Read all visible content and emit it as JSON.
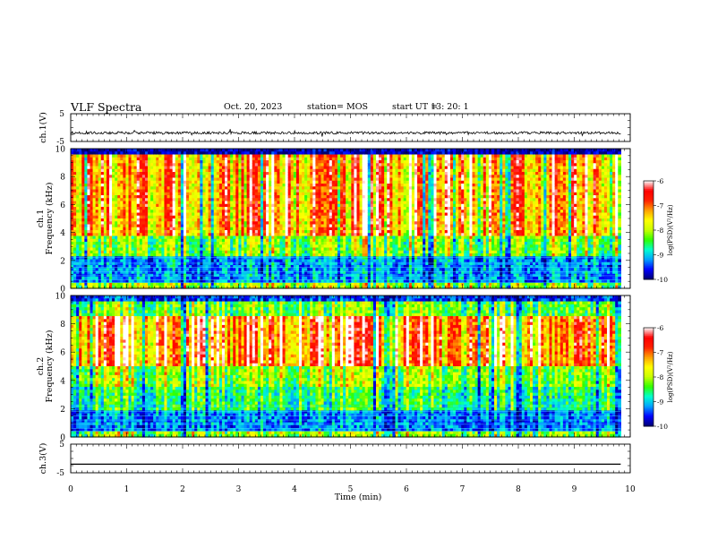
{
  "header": {
    "title": "VLF Spectra",
    "date": "Oct. 20, 2023",
    "station": "station= MOS",
    "start_label": "start  UT =",
    "start_time": "13: 20: 1"
  },
  "chart_data": [
    {
      "type": "line",
      "panel": "ch1-waveform",
      "ylabel": "ch.1(V)",
      "ylim": [
        -5,
        5
      ],
      "yticks": [
        "5",
        "-5"
      ],
      "xlim": [
        0,
        10
      ],
      "series_description": "noisy waveform near -1.9 V",
      "baseline": -1.9
    },
    {
      "type": "heatmap",
      "panel": "ch1-spectrogram",
      "ylabel": "ch.1 Frequency (kHz)",
      "ylim": [
        0,
        10
      ],
      "yticks": [
        "0",
        "2",
        "4",
        "6",
        "8",
        "10"
      ],
      "xlim": [
        0,
        9.83
      ],
      "colorbar": {
        "label": "log(PSD)(V²/Hz)",
        "ticks": [
          "-6",
          "-7",
          "-8",
          "-9",
          "-10"
        ],
        "range": [
          -10,
          -6
        ],
        "colors": [
          "#000070",
          "#0000ff",
          "#00a0ff",
          "#00ffd0",
          "#30ff00",
          "#c8ff00",
          "#ffff00",
          "#ffa000",
          "#ff2000",
          "#ff0000",
          "#ffffff"
        ]
      },
      "dominant_band_khz": [
        4,
        9.5
      ]
    },
    {
      "type": "heatmap",
      "panel": "ch2-spectrogram",
      "ylabel": "ch.2 Frequency (kHz)",
      "ylim": [
        0,
        10
      ],
      "yticks": [
        "0",
        "2",
        "4",
        "6",
        "8",
        "10"
      ],
      "xlim": [
        0,
        9.83
      ],
      "colorbar": {
        "label": "log(PSD)(V²/Hz)",
        "ticks": [
          "-6",
          "-7",
          "-8",
          "-9",
          "-10"
        ],
        "range": [
          -10,
          -6
        ],
        "colors": [
          "#000070",
          "#0000ff",
          "#00a0ff",
          "#00ffd0",
          "#30ff00",
          "#c8ff00",
          "#ffff00",
          "#ffa000",
          "#ff2000",
          "#ff0000",
          "#ffffff"
        ]
      },
      "dominant_band_khz": [
        5,
        8.5
      ]
    },
    {
      "type": "line",
      "panel": "ch3-waveform",
      "ylabel": "ch.3(V)",
      "ylim": [
        -5,
        5
      ],
      "yticks": [
        "5",
        "-5"
      ],
      "xlim": [
        0,
        10
      ],
      "series_description": "flat line at -2 V",
      "baseline": -2
    }
  ],
  "xaxis": {
    "label": "Time (min)",
    "ticks": [
      "0",
      "1",
      "2",
      "3",
      "4",
      "5",
      "6",
      "7",
      "8",
      "9",
      "10"
    ]
  }
}
